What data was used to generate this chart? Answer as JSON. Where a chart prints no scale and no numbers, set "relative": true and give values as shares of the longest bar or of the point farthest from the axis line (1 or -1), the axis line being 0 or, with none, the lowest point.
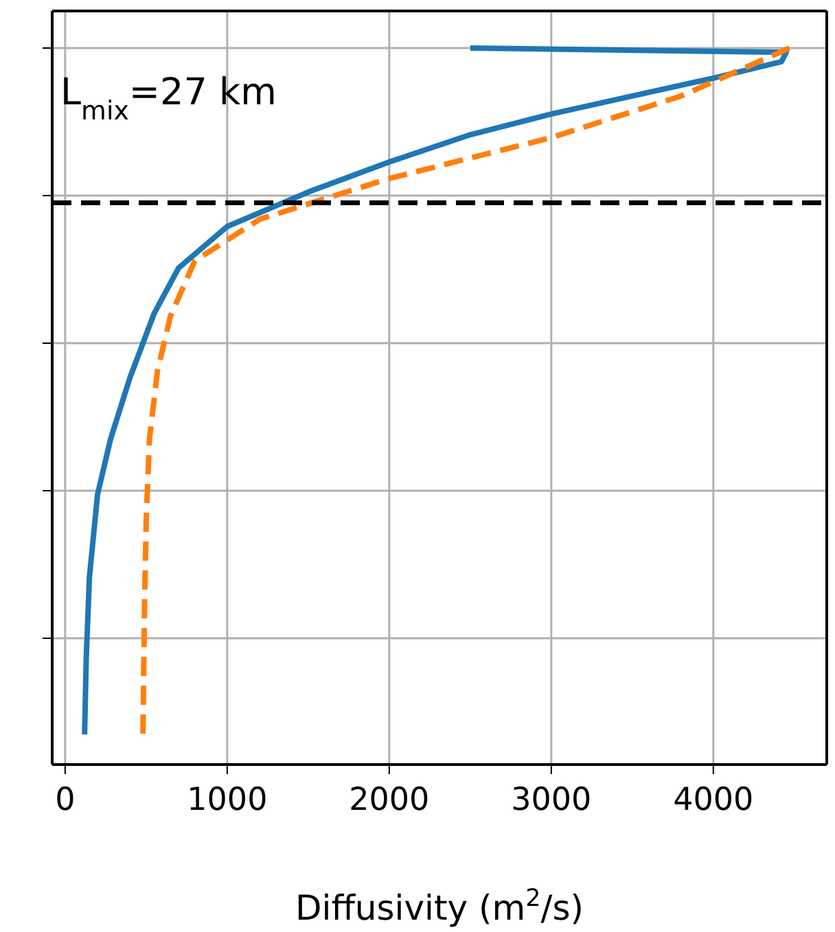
{
  "chart_data": {
    "type": "line",
    "xlabel": "Diffusivity (m$^{2}$/s)",
    "xlim": [
      -80,
      4700
    ],
    "xticks": [
      0,
      1000,
      2000,
      3000,
      4000
    ],
    "relative": true,
    "tick_labels": "x",
    "grid": true,
    "series": [
      {
        "color": "#1f77b4",
        "line_style": "solid",
        "x": [
          2500,
          4450,
          4420,
          4000,
          3500,
          3000,
          2500,
          2000,
          1500,
          1000,
          700,
          550,
          400,
          280,
          200,
          150,
          130,
          120
        ],
        "values": [
          1,
          0.994,
          0.981,
          0.958,
          0.933,
          0.908,
          0.879,
          0.841,
          0.799,
          0.751,
          0.693,
          0.63,
          0.54,
          0.454,
          0.377,
          0.262,
          0.148,
          0.042
        ]
      },
      {
        "color": "#ff7f0e",
        "line_style": "dashed",
        "x": [
          4470,
          3800,
          3000,
          2000,
          1200,
          800,
          650,
          570,
          520,
          500,
          490,
          480
        ],
        "values": [
          1,
          0.933,
          0.875,
          0.818,
          0.761,
          0.703,
          0.626,
          0.55,
          0.454,
          0.339,
          0.224,
          0.042
        ]
      }
    ],
    "ref_lines": [
      {
        "axis": "y",
        "value": 0.784,
        "color": "#000000",
        "line_style": "dashed"
      }
    ],
    "annotations": [
      "L$_{mix}$=27 km"
    ]
  }
}
